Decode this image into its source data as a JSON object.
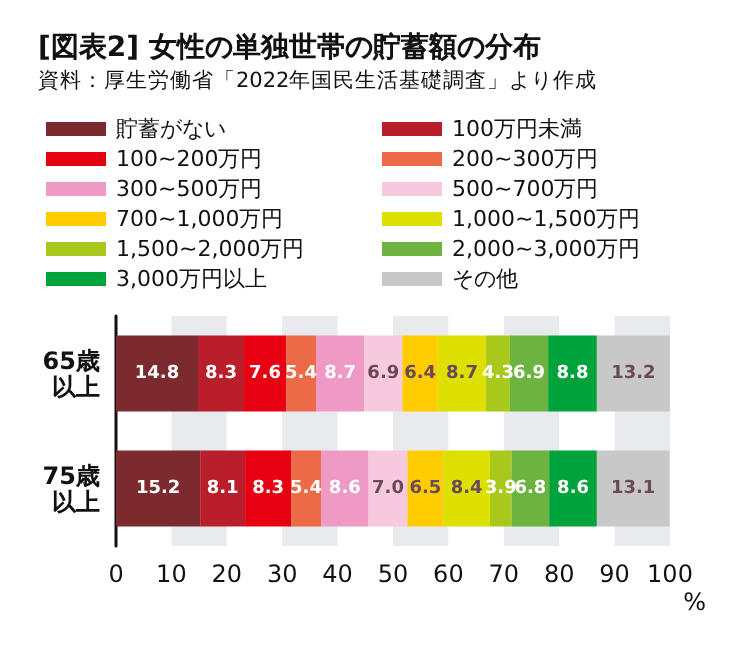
{
  "chart_data": {
    "type": "bar",
    "orientation": "horizontal",
    "stacked": true,
    "title": "[図表2] 女性の単独世帯の貯蓄額の分布",
    "subtitle": "資料：厚生労働省「2022年国民生活基礎調査」より作成",
    "xlabel": "%",
    "categories": [
      "65歳以上",
      "75歳以上"
    ],
    "series": [
      {
        "name": "貯蓄がない",
        "color": "#7b2a2e",
        "values": [
          14.8,
          15.2
        ],
        "value_labels": [
          "14.8",
          "15.2"
        ]
      },
      {
        "name": "100万円未満",
        "color": "#b81f2a",
        "values": [
          8.3,
          8.1
        ],
        "value_labels": [
          "8.3",
          "8.1"
        ]
      },
      {
        "name": "100~200万円",
        "color": "#e60012",
        "values": [
          7.6,
          8.3
        ],
        "value_labels": [
          "7.6",
          "8.3"
        ]
      },
      {
        "name": "200~300万円",
        "color": "#ec6a48",
        "values": [
          5.4,
          5.4
        ],
        "value_labels": [
          "5.4",
          "5.4"
        ]
      },
      {
        "name": "300~500万円",
        "color": "#ee9ac4",
        "values": [
          8.7,
          8.6
        ],
        "value_labels": [
          "8.7",
          "8.6"
        ]
      },
      {
        "name": "500~700万円",
        "color": "#f6c9de",
        "values": [
          6.9,
          7.0
        ],
        "value_labels": [
          "6.9",
          "7.0"
        ]
      },
      {
        "name": "700~1,000万円",
        "color": "#ffcc00",
        "values": [
          6.4,
          6.5
        ],
        "value_labels": [
          "6.4",
          "6.5"
        ]
      },
      {
        "name": "1,000~1,500万円",
        "color": "#dde000",
        "values": [
          8.7,
          8.4
        ],
        "value_labels": [
          "8.7",
          "8.4"
        ]
      },
      {
        "name": "1,500~2,000万円",
        "color": "#a8c91c",
        "values": [
          4.3,
          3.9
        ],
        "value_labels": [
          "4.3",
          "3.9"
        ]
      },
      {
        "name": "2,000~3,000万円",
        "color": "#6db33f",
        "values": [
          6.9,
          6.8
        ],
        "value_labels": [
          "6.9",
          "6.8"
        ]
      },
      {
        "name": "3,000万円以上",
        "color": "#00a23c",
        "values": [
          8.8,
          8.6
        ],
        "value_labels": [
          "8.8",
          "8.6"
        ]
      },
      {
        "name": "その他",
        "color": "#c8c8c8",
        "values": [
          13.2,
          13.1
        ],
        "value_labels": [
          "13.2",
          "13.1"
        ]
      }
    ],
    "bands": [
      {
        "axis": "x",
        "from": 10,
        "to": 20,
        "color": "#e8eaee"
      },
      {
        "axis": "x",
        "from": 30,
        "to": 40,
        "color": "#e8eaee"
      },
      {
        "axis": "x",
        "from": 50,
        "to": 60,
        "color": "#e8eaee"
      },
      {
        "axis": "x",
        "from": 70,
        "to": 80,
        "color": "#e8eaee"
      },
      {
        "axis": "x",
        "from": 90,
        "to": 100,
        "color": "#e8eaee"
      }
    ],
    "xlim": [
      0,
      100
    ],
    "xticks": [
      0,
      10,
      20,
      30,
      40,
      50,
      60,
      70,
      80,
      90,
      100
    ],
    "legend": "top left"
  }
}
